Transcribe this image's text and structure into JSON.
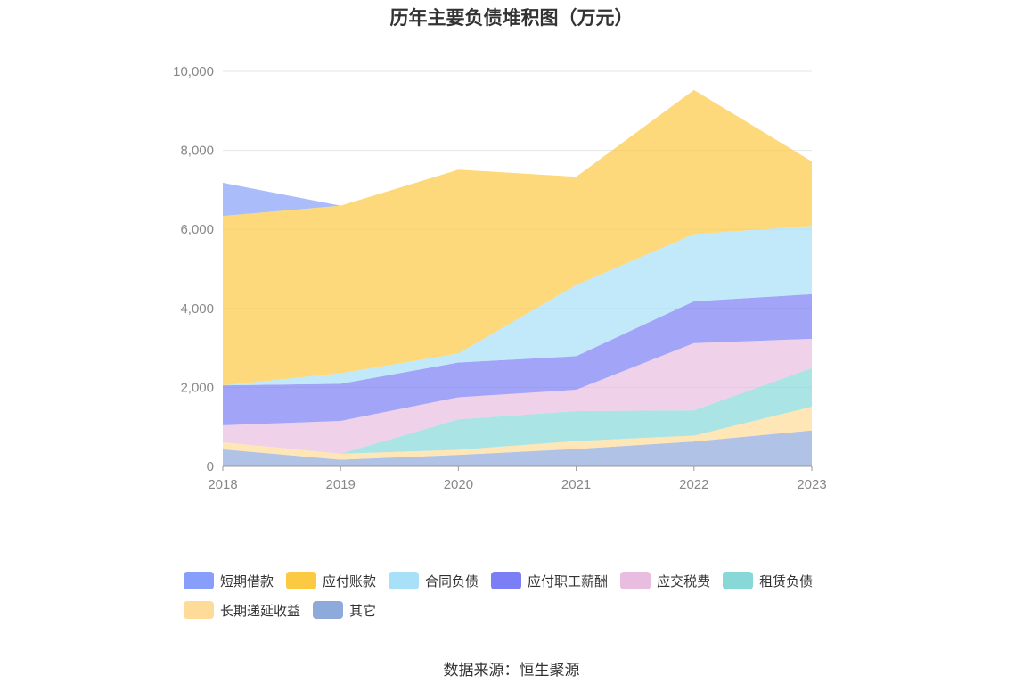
{
  "chart_data": {
    "type": "area",
    "stacked": true,
    "title": "历年主要负债堆积图（万元）",
    "categories": [
      "2018",
      "2019",
      "2020",
      "2021",
      "2022",
      "2023"
    ],
    "ylim": [
      0,
      10000
    ],
    "yticks": [
      "0",
      "2,000",
      "4,000",
      "6,000",
      "8,000",
      "10,000"
    ],
    "grid": true,
    "legend_position": "bottom",
    "series": [
      {
        "name": "其它",
        "color": "#8eaadb",
        "values": [
          430,
          170,
          290,
          440,
          630,
          910
        ]
      },
      {
        "name": "长期递延收益",
        "color": "#ffdb99",
        "values": [
          180,
          150,
          130,
          200,
          150,
          600
        ]
      },
      {
        "name": "租赁负债",
        "color": "#88d8d8",
        "values": [
          0,
          0,
          770,
          760,
          640,
          980
        ]
      },
      {
        "name": "应交税费",
        "color": "#e8bde0",
        "values": [
          430,
          830,
          560,
          540,
          1700,
          740
        ]
      },
      {
        "name": "应付职工薪酬",
        "color": "#7b7ef5",
        "values": [
          1010,
          940,
          880,
          850,
          1060,
          1130
        ]
      },
      {
        "name": "合同负债",
        "color": "#a8e0f8",
        "values": [
          0,
          270,
          230,
          1800,
          1700,
          1730
        ]
      },
      {
        "name": "应付账款",
        "color": "#fcc943",
        "values": [
          4290,
          4240,
          4650,
          2740,
          3650,
          1630
        ]
      },
      {
        "name": "短期借款",
        "color": "#879ffa",
        "values": [
          840,
          0,
          0,
          0,
          0,
          0
        ]
      }
    ]
  },
  "legend": [
    {
      "name": "短期借款",
      "color": "#879ffa"
    },
    {
      "name": "应付账款",
      "color": "#fcc943"
    },
    {
      "name": "合同负债",
      "color": "#a8e0f8"
    },
    {
      "name": "应付职工薪酬",
      "color": "#7b7ef5"
    },
    {
      "name": "应交税费",
      "color": "#e8bde0"
    },
    {
      "name": "租赁负债",
      "color": "#88d8d8"
    },
    {
      "name": "长期递延收益",
      "color": "#ffdb99"
    },
    {
      "name": "其它",
      "color": "#8eaadb"
    }
  ],
  "source": "数据来源：恒生聚源"
}
